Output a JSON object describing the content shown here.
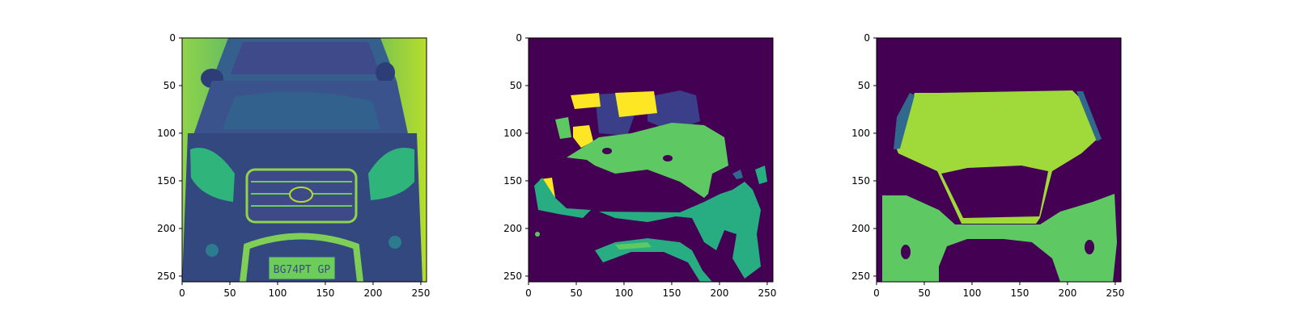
{
  "figure": {
    "panels": [
      {
        "name": "input-image-panel",
        "subject": "grayscale car front rendered in viridis colormap",
        "x_ticks": [
          "0",
          "50",
          "100",
          "150",
          "200",
          "250"
        ],
        "y_ticks": [
          "0",
          "50",
          "100",
          "150",
          "200",
          "250"
        ],
        "license_plate_text": "BG74PT GP"
      },
      {
        "name": "predicted-mask-panel",
        "subject": "predicted segmentation mask",
        "x_ticks": [
          "0",
          "50",
          "100",
          "150",
          "200",
          "250"
        ],
        "y_ticks": [
          "0",
          "50",
          "100",
          "150",
          "200",
          "250"
        ]
      },
      {
        "name": "ground-truth-mask-panel",
        "subject": "ground truth segmentation mask",
        "x_ticks": [
          "0",
          "50",
          "100",
          "150",
          "200",
          "250"
        ],
        "y_ticks": [
          "0",
          "50",
          "100",
          "150",
          "200",
          "250"
        ]
      }
    ],
    "colors": {
      "bg_purple": "#440154",
      "indigo": "#3b3f8a",
      "blue_teal": "#31688e",
      "teal": "#21908c",
      "green_teal": "#27ad81",
      "green": "#5ec962",
      "yellow_green": "#9fda3a",
      "yellow": "#fde725"
    }
  }
}
